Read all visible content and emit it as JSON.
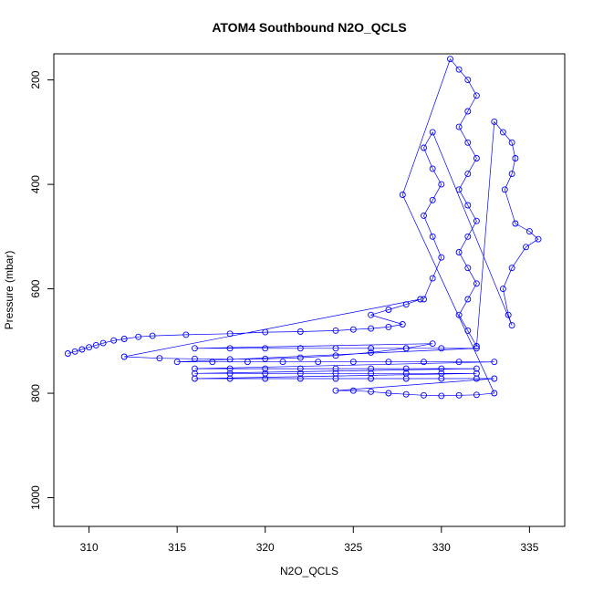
{
  "chart_data": {
    "type": "scatter",
    "title": "ATOM4 Southbound N2O_QCLS",
    "xlabel": "N2O_QCLS",
    "ylabel": "Pressure (mbar)",
    "xlim": [
      308,
      337
    ],
    "ylim": [
      1055,
      150
    ],
    "y_reversed": true,
    "x_ticks": [
      310,
      315,
      320,
      325,
      330,
      335
    ],
    "y_ticks": [
      200,
      400,
      600,
      800,
      1000
    ],
    "grid": false,
    "point_style": "open-circle",
    "line_connected": true,
    "color": "#0000ff",
    "series": [
      {
        "values": [
          [
            308.8,
            724
          ],
          [
            309.2,
            720
          ],
          [
            309.6,
            716
          ],
          [
            310.0,
            712
          ],
          [
            310.4,
            708
          ],
          [
            310.8,
            704
          ],
          [
            311.4,
            699
          ],
          [
            312.0,
            696
          ],
          [
            312.8,
            692
          ],
          [
            313.6,
            690
          ],
          [
            315.5,
            688
          ],
          [
            318.0,
            686
          ],
          [
            320.0,
            683
          ],
          [
            322.0,
            682
          ],
          [
            324.0,
            680
          ],
          [
            325.0,
            678
          ],
          [
            326.0,
            676
          ],
          [
            327.0,
            673
          ],
          [
            327.8,
            668
          ],
          [
            326.0,
            650
          ],
          [
            327.0,
            640
          ],
          [
            328.0,
            630
          ],
          [
            328.8,
            620
          ],
          [
            312.0,
            730
          ],
          [
            314.0,
            733
          ],
          [
            316.0,
            734
          ],
          [
            318.0,
            735
          ],
          [
            320.0,
            734
          ],
          [
            322.0,
            732
          ],
          [
            324.0,
            728
          ],
          [
            326.0,
            722
          ],
          [
            328.0,
            714
          ],
          [
            329.5,
            705
          ],
          [
            316.0,
            714
          ],
          [
            318.0,
            714
          ],
          [
            320.0,
            714
          ],
          [
            322.0,
            714
          ],
          [
            324.0,
            714
          ],
          [
            326.0,
            714
          ],
          [
            328.0,
            714
          ],
          [
            330.0,
            714
          ],
          [
            332.0,
            714
          ],
          [
            315.0,
            740
          ],
          [
            317.0,
            740
          ],
          [
            319.0,
            740
          ],
          [
            321.0,
            740
          ],
          [
            323.0,
            740
          ],
          [
            325.0,
            740
          ],
          [
            327.0,
            740
          ],
          [
            329.0,
            740
          ],
          [
            331.0,
            740
          ],
          [
            333.0,
            740
          ],
          [
            316.0,
            753
          ],
          [
            318.0,
            753
          ],
          [
            320.0,
            753
          ],
          [
            322.0,
            753
          ],
          [
            324.0,
            753
          ],
          [
            326.0,
            753
          ],
          [
            328.0,
            753
          ],
          [
            330.0,
            753
          ],
          [
            332.0,
            753
          ],
          [
            316.0,
            762
          ],
          [
            318.0,
            762
          ],
          [
            320.0,
            762
          ],
          [
            322.0,
            762
          ],
          [
            324.0,
            762
          ],
          [
            326.0,
            762
          ],
          [
            328.0,
            762
          ],
          [
            330.0,
            762
          ],
          [
            332.0,
            762
          ],
          [
            316.0,
            772
          ],
          [
            318.0,
            772
          ],
          [
            320.0,
            772
          ],
          [
            322.0,
            772
          ],
          [
            324.0,
            772
          ],
          [
            326.0,
            772
          ],
          [
            328.0,
            772
          ],
          [
            330.0,
            772
          ],
          [
            332.0,
            772
          ],
          [
            333.0,
            772
          ],
          [
            324.0,
            795
          ],
          [
            325.0,
            795
          ],
          [
            326.0,
            797
          ],
          [
            327.0,
            800
          ],
          [
            328.0,
            802
          ],
          [
            329.0,
            804
          ],
          [
            330.0,
            805
          ],
          [
            331.0,
            804
          ],
          [
            332.0,
            803
          ],
          [
            333.0,
            800
          ],
          [
            327.8,
            420
          ],
          [
            330.5,
            160
          ],
          [
            331.0,
            180
          ],
          [
            331.5,
            200
          ],
          [
            332.0,
            230
          ],
          [
            331.5,
            260
          ],
          [
            331.0,
            290
          ],
          [
            331.5,
            320
          ],
          [
            332.0,
            350
          ],
          [
            331.5,
            380
          ],
          [
            331.0,
            410
          ],
          [
            331.5,
            440
          ],
          [
            332.0,
            470
          ],
          [
            331.5,
            500
          ],
          [
            331.0,
            530
          ],
          [
            331.5,
            560
          ],
          [
            332.0,
            590
          ],
          [
            331.5,
            620
          ],
          [
            331.0,
            650
          ],
          [
            331.5,
            680
          ],
          [
            332.0,
            710
          ],
          [
            333.0,
            280
          ],
          [
            333.5,
            300
          ],
          [
            334.0,
            320
          ],
          [
            334.2,
            350
          ],
          [
            334.0,
            380
          ],
          [
            333.6,
            410
          ],
          [
            334.2,
            475
          ],
          [
            335.0,
            490
          ],
          [
            335.5,
            505
          ],
          [
            334.8,
            520
          ],
          [
            334.0,
            560
          ],
          [
            333.5,
            600
          ],
          [
            333.8,
            650
          ],
          [
            334.0,
            670
          ],
          [
            329.5,
            300
          ],
          [
            329.0,
            330
          ],
          [
            329.5,
            370
          ],
          [
            330.0,
            400
          ],
          [
            329.5,
            430
          ],
          [
            329.0,
            460
          ],
          [
            329.5,
            500
          ],
          [
            330.0,
            540
          ],
          [
            329.5,
            580
          ],
          [
            329.0,
            620
          ]
        ]
      }
    ]
  }
}
